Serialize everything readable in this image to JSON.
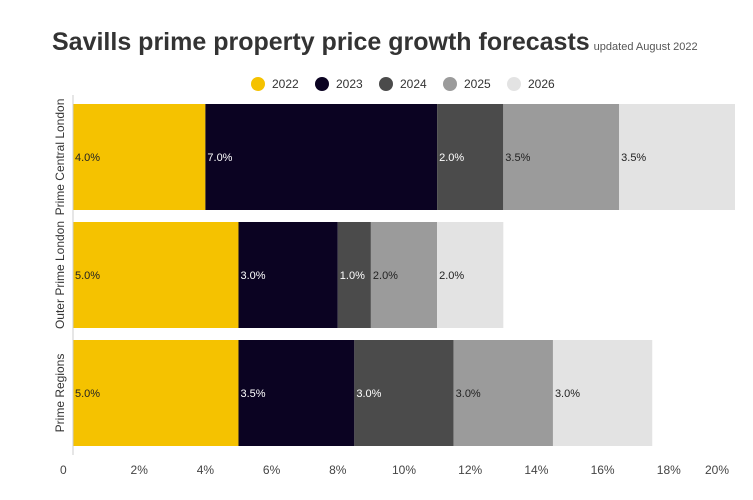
{
  "title": "Savills prime property price growth forecasts",
  "subtitle": "updated August 2022",
  "colors": {
    "2022": "#f5c200",
    "2023": "#0b0322",
    "2024": "#4b4b4b",
    "2025": "#9b9b9b",
    "2026": "#e3e3e3"
  },
  "chart_data": {
    "type": "bar",
    "orientation": "horizontal",
    "stacked": true,
    "categories": [
      "Prime Central London",
      "Outer Prime London",
      "Prime Regions"
    ],
    "series": [
      {
        "name": "2022",
        "values": [
          4.0,
          5.0,
          5.0
        ],
        "labels": [
          "4.0%",
          "5.0%",
          "5.0%"
        ]
      },
      {
        "name": "2023",
        "values": [
          7.0,
          3.0,
          3.5
        ],
        "labels": [
          "7.0%",
          "3.0%",
          "3.5%"
        ]
      },
      {
        "name": "2024",
        "values": [
          2.0,
          1.0,
          3.0
        ],
        "labels": [
          "2.0%",
          "1.0%",
          "3.0%"
        ]
      },
      {
        "name": "2025",
        "values": [
          3.5,
          2.0,
          3.0
        ],
        "labels": [
          "3.5%",
          "2.0%",
          "3.0%"
        ]
      },
      {
        "name": "2026",
        "values": [
          3.5,
          2.0,
          3.0
        ],
        "labels": [
          "3.5%",
          "2.0%",
          "3.0%"
        ]
      }
    ],
    "xlim": [
      0,
      20
    ],
    "xticks": [
      "0",
      "2%",
      "4%",
      "6%",
      "8%",
      "10%",
      "12%",
      "14%",
      "16%",
      "18%",
      "20%"
    ],
    "legend_position": "top",
    "grid": false
  }
}
